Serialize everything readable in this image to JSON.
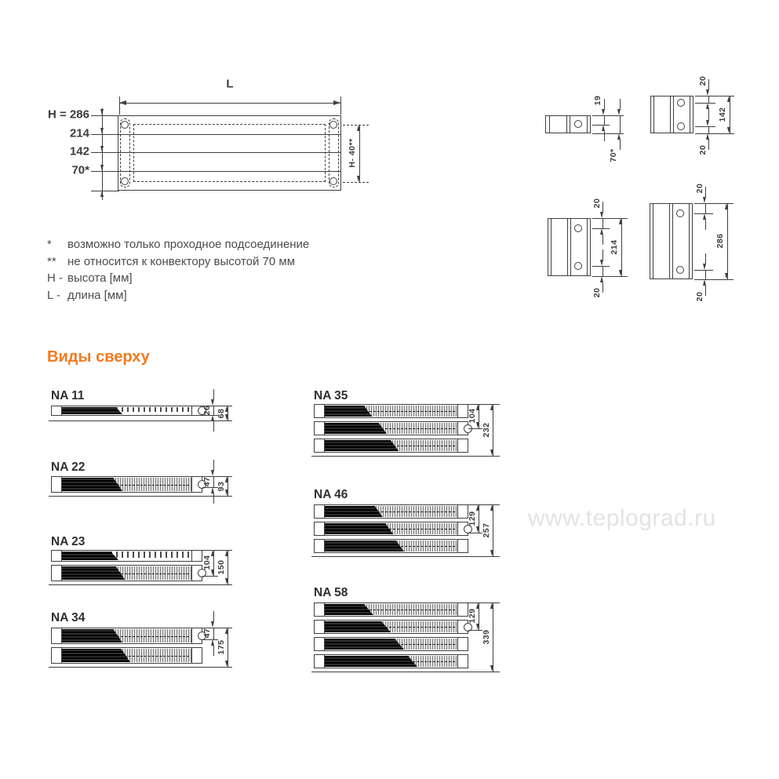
{
  "front_view": {
    "length_label": "L",
    "heights": [
      "H = 286",
      "214",
      "142",
      "70*"
    ],
    "right_dim_label": "H- 40**"
  },
  "side_views": {
    "h70": {
      "dim_top": "19",
      "dim_total": "70*"
    },
    "h142": {
      "dim_top": "20",
      "dim_mid": "142",
      "dim_bottom": "20"
    },
    "h214": {
      "dim_top": "20",
      "dim_mid": "214",
      "dim_bottom": "20"
    },
    "h286": {
      "dim_top": "20",
      "dim_mid": "286",
      "dim_bottom": "20"
    }
  },
  "notes": [
    {
      "marker": "*",
      "text": "возможно только проходное подсоединение"
    },
    {
      "marker": "**",
      "text": "не относится к конвектору высотой 70 мм"
    },
    {
      "marker": "H -",
      "text": "высота [мм]"
    },
    {
      "marker": "L -",
      "text": "длина [мм]"
    }
  ],
  "heading": "Виды сверху",
  "top_views": [
    {
      "label": "NA 11",
      "dim_small": "26",
      "dim_total": "68"
    },
    {
      "label": "NA 22",
      "dim_small": "47",
      "dim_total": "93"
    },
    {
      "label": "NA 23",
      "dim_small": "104",
      "dim_total": "150"
    },
    {
      "label": "NA 34",
      "dim_small": "47",
      "dim_total": "175"
    },
    {
      "label": "NA 35",
      "dim_small": "104",
      "dim_total": "232"
    },
    {
      "label": "NA 46",
      "dim_small": "129",
      "dim_total": "257"
    },
    {
      "label": "NA 58",
      "dim_small": "129",
      "dim_total": "339"
    }
  ],
  "watermark": "www.teplograd.ru",
  "colors": {
    "accent": "#F4791F",
    "line": "#3F3F3F",
    "text": "#4C4C4C",
    "watermark": "#E3E3E3"
  }
}
